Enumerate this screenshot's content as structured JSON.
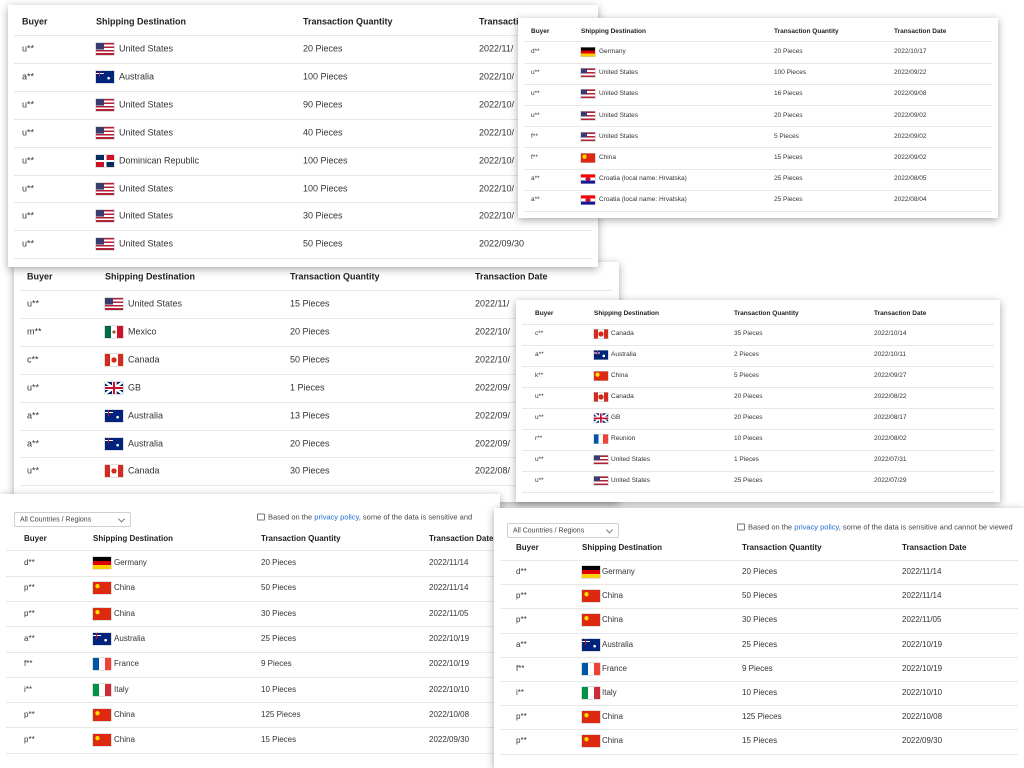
{
  "panels": [
    {
      "headers": [
        "Buyer",
        "Shipping Destination",
        "Transaction Quantity",
        "Transaction Date"
      ],
      "rows": [
        [
          "u**",
          "United States",
          "20 Pieces",
          "2022/11/"
        ],
        [
          "a**",
          "Australia",
          "100 Pieces",
          "2022/10/"
        ],
        [
          "u**",
          "United States",
          "90 Pieces",
          "2022/10/"
        ],
        [
          "u**",
          "United States",
          "40 Pieces",
          "2022/10/"
        ],
        [
          "u**",
          "Dominican Republic",
          "100 Pieces",
          "2022/10/"
        ],
        [
          "u**",
          "United States",
          "100 Pieces",
          "2022/10/"
        ],
        [
          "u**",
          "United States",
          "30 Pieces",
          "2022/10/"
        ],
        [
          "u**",
          "United States",
          "50 Pieces",
          "2022/09/30"
        ]
      ]
    },
    {
      "headers": [
        "Buyer",
        "Shipping Destination",
        "Transaction Quantity",
        "Transaction Date"
      ],
      "rows": [
        [
          "d**",
          "Germany",
          "20 Pieces",
          "2022/10/17"
        ],
        [
          "u**",
          "United States",
          "100 Pieces",
          "2022/09/22"
        ],
        [
          "u**",
          "United States",
          "16 Pieces",
          "2022/09/08"
        ],
        [
          "u**",
          "United States",
          "20 Pieces",
          "2022/09/02"
        ],
        [
          "f**",
          "United States",
          "5 Pieces",
          "2022/09/02"
        ],
        [
          "f**",
          "China",
          "15 Pieces",
          "2022/09/02"
        ],
        [
          "a**",
          "Croatia (local name: Hrvatska)",
          "25 Pieces",
          "2022/08/05"
        ],
        [
          "a**",
          "Croatia (local name: Hrvatska)",
          "25 Pieces",
          "2022/08/04"
        ]
      ]
    },
    {
      "headers": [
        "Buyer",
        "Shipping Destination",
        "Transaction Quantity",
        "Transaction Date"
      ],
      "rows": [
        [
          "u**",
          "United States",
          "15 Pieces",
          "2022/11/"
        ],
        [
          "m**",
          "Mexico",
          "20 Pieces",
          "2022/10/"
        ],
        [
          "c**",
          "Canada",
          "50 Pieces",
          "2022/10/"
        ],
        [
          "u**",
          "GB",
          "1 Pieces",
          "2022/09/"
        ],
        [
          "a**",
          "Australia",
          "13 Pieces",
          "2022/09/"
        ],
        [
          "a**",
          "Australia",
          "20 Pieces",
          "2022/09/"
        ],
        [
          "u**",
          "Canada",
          "30 Pieces",
          "2022/08/"
        ]
      ]
    },
    {
      "headers": [
        "Buyer",
        "Shipping Destination",
        "Transaction Quantity",
        "Transaction Date"
      ],
      "rows": [
        [
          "c**",
          "Canada",
          "35 Pieces",
          "2022/10/14"
        ],
        [
          "a**",
          "Australia",
          "2 Pieces",
          "2022/10/11"
        ],
        [
          "k**",
          "China",
          "5 Pieces",
          "2022/09/27"
        ],
        [
          "u**",
          "Canada",
          "20 Pieces",
          "2022/08/22"
        ],
        [
          "u**",
          "GB",
          "20 Pieces",
          "2022/08/17"
        ],
        [
          "r**",
          "Reunion",
          "10 Pieces",
          "2022/08/02"
        ],
        [
          "u**",
          "United States",
          "1 Pieces",
          "2022/07/31"
        ],
        [
          "u**",
          "United States",
          "25 Pieces",
          "2022/07/29"
        ]
      ]
    },
    {
      "filter": "All Countries / Regions",
      "notice": {
        "before": "Based on the ",
        "link": "privacy policy",
        "after": ", some of the data is sensitive and"
      },
      "headers": [
        "Buyer",
        "Shipping Destination",
        "Transaction Quantity",
        "Transaction Date"
      ],
      "rows": [
        [
          "d**",
          "Germany",
          "20 Pieces",
          "2022/11/14"
        ],
        [
          "p**",
          "China",
          "50 Pieces",
          "2022/11/14"
        ],
        [
          "p**",
          "China",
          "30 Pieces",
          "2022/11/05"
        ],
        [
          "a**",
          "Australia",
          "25 Pieces",
          "2022/10/19"
        ],
        [
          "f**",
          "France",
          "9 Pieces",
          "2022/10/19"
        ],
        [
          "i**",
          "Italy",
          "10 Pieces",
          "2022/10/10"
        ],
        [
          "p**",
          "China",
          "125 Pieces",
          "2022/10/08"
        ],
        [
          "p**",
          "China",
          "15 Pieces",
          "2022/09/30"
        ]
      ]
    },
    {
      "filter": "All Countries / Regions",
      "notice": {
        "before": "Based on the ",
        "link": "privacy policy",
        "after": ", some of the data is sensitive and cannot be viewed"
      },
      "headers": [
        "Buyer",
        "Shipping Destination",
        "Transaction Quantity",
        "Transaction Date"
      ],
      "rows": [
        [
          "d**",
          "Germany",
          "20 Pieces",
          "2022/11/14"
        ],
        [
          "p**",
          "China",
          "50 Pieces",
          "2022/11/14"
        ],
        [
          "p**",
          "China",
          "30 Pieces",
          "2022/11/05"
        ],
        [
          "a**",
          "Australia",
          "25 Pieces",
          "2022/10/19"
        ],
        [
          "f**",
          "France",
          "9 Pieces",
          "2022/10/19"
        ],
        [
          "i**",
          "Italy",
          "10 Pieces",
          "2022/10/10"
        ],
        [
          "p**",
          "China",
          "125 Pieces",
          "2022/10/08"
        ],
        [
          "p**",
          "China",
          "15 Pieces",
          "2022/09/30"
        ]
      ]
    }
  ]
}
